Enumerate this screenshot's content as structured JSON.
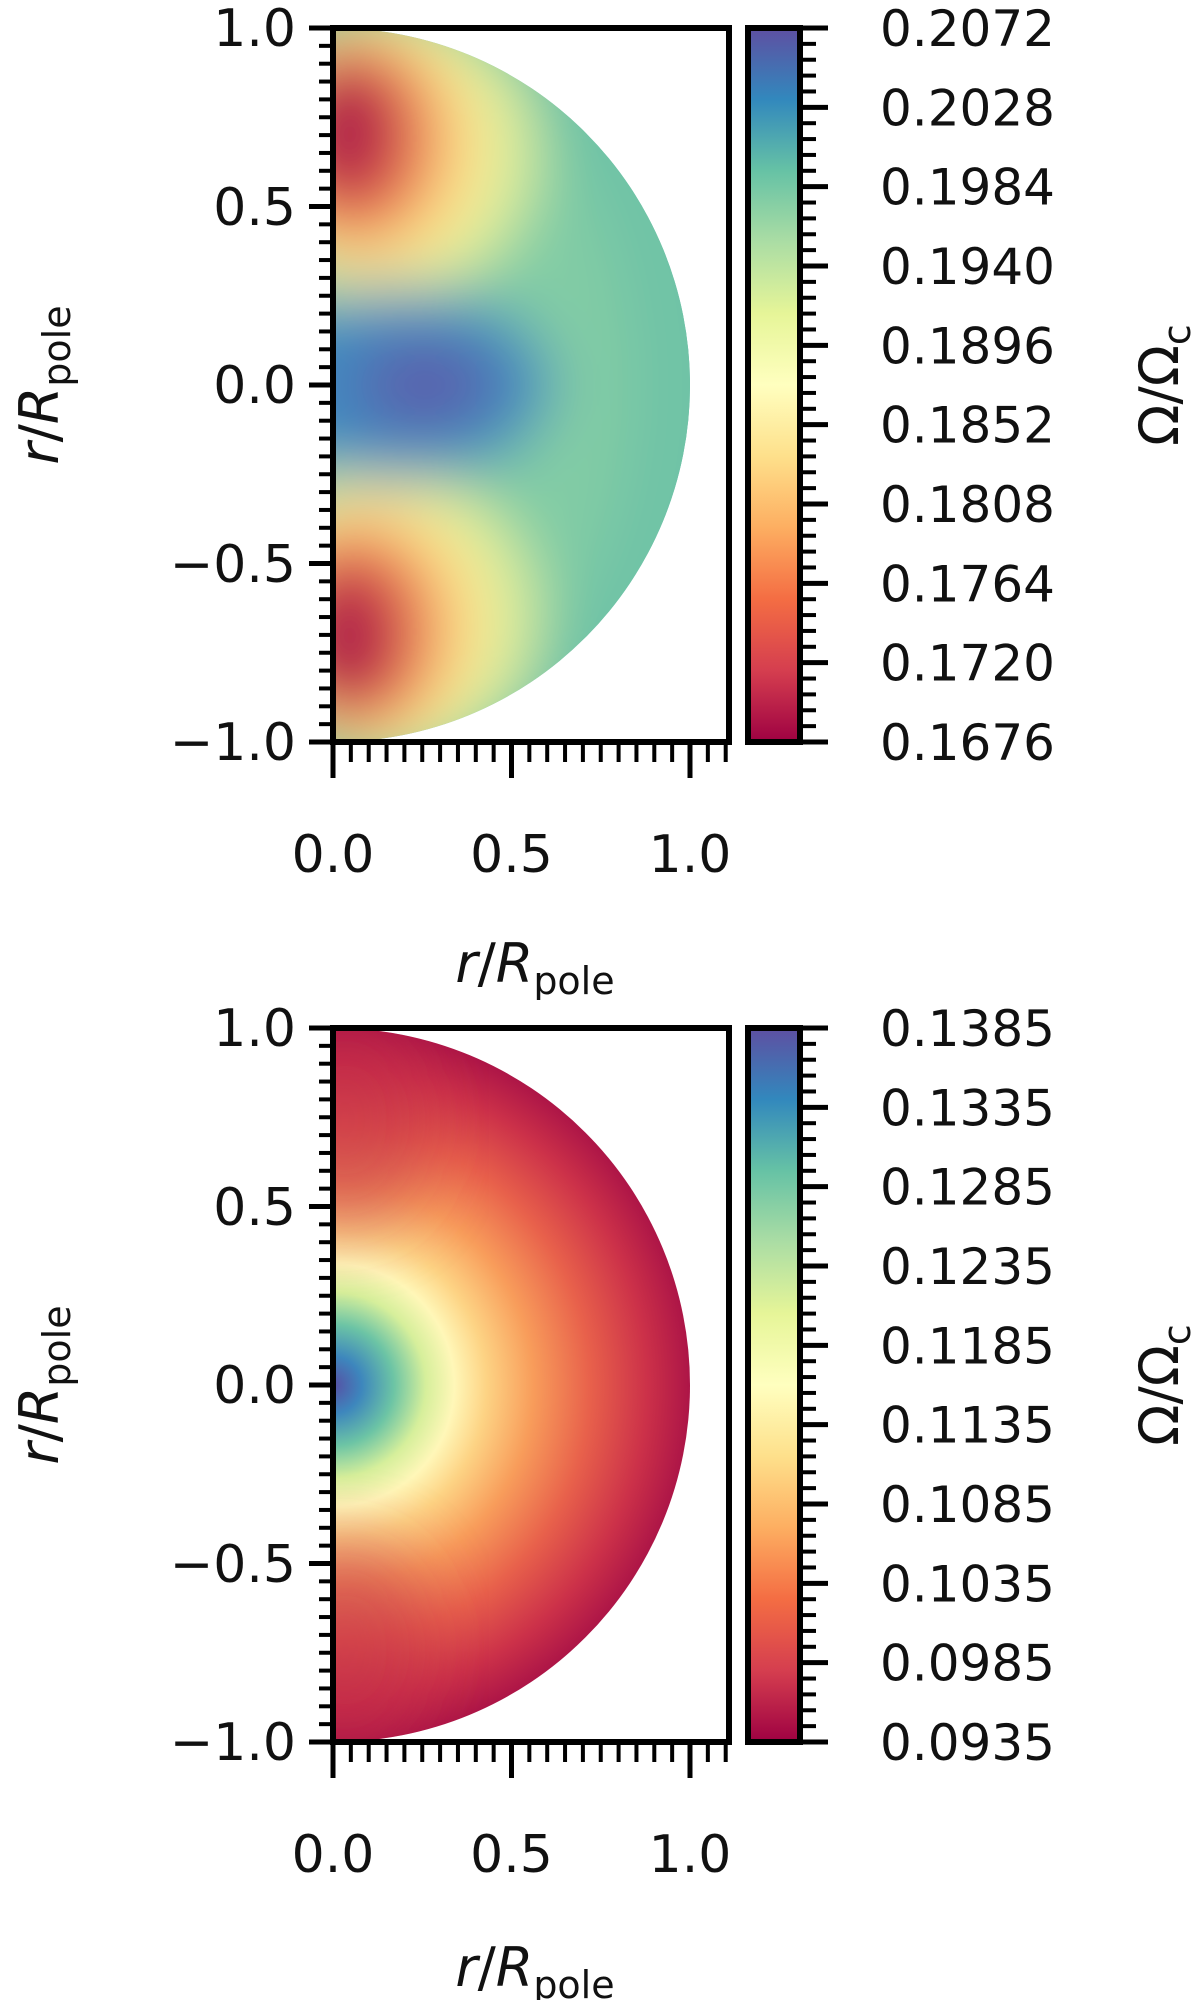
{
  "chart_data": [
    {
      "type": "heatmap",
      "title": "",
      "xlabel": {
        "var": "r",
        "sym": "R",
        "sub": "pole"
      },
      "ylabel": {
        "var": "r",
        "sym": "R",
        "sub": "pole"
      },
      "xlim": [
        0.0,
        1.1
      ],
      "ylim": [
        -1.0,
        1.0
      ],
      "x_ticks": [
        "0.0",
        "0.5",
        "1.0"
      ],
      "y_ticks": [
        "−1.0",
        "−0.5",
        "0.0",
        "0.5",
        "1.0"
      ],
      "colorbar_label": {
        "sym": "Ω/Ω",
        "sub": "c"
      },
      "colorbar_ticks": [
        "0.1676",
        "0.1720",
        "0.1764",
        "0.1808",
        "0.1852",
        "0.1896",
        "0.1940",
        "0.1984",
        "0.2028",
        "0.2072"
      ],
      "colorbar_range": [
        0.1676,
        0.2072
      ],
      "colormap": "Spectral",
      "field": "Ω/Ωc on a half-disk of radius 1; low (≈0.168) at polar region r≈0.2–0.8 near the axis, high (≈0.207) at the equator near r≈0.3, ≈0.199 in the outer envelope"
    },
    {
      "type": "heatmap",
      "title": "",
      "xlabel": {
        "var": "r",
        "sym": "R",
        "sub": "pole"
      },
      "ylabel": {
        "var": "r",
        "sym": "R",
        "sub": "pole"
      },
      "xlim": [
        0.0,
        1.1
      ],
      "ylim": [
        -1.0,
        1.0
      ],
      "x_ticks": [
        "0.0",
        "0.5",
        "1.0"
      ],
      "y_ticks": [
        "−1.0",
        "−0.5",
        "0.0",
        "0.5",
        "1.0"
      ],
      "colorbar_label": {
        "sym": "Ω/Ω",
        "sub": "c"
      },
      "colorbar_ticks": [
        "0.1385",
        "0.1335",
        "0.1285",
        "0.1235",
        "0.1185",
        "0.1135",
        "0.1085",
        "0.1035",
        "0.0985",
        "0.0935"
      ],
      "colorbar_range": [
        0.0935,
        0.1385
      ],
      "colormap": "Spectral",
      "field": "Ω/Ωc on a half-disk of radius 1; maximum (≈0.1385) at the center, decreasing radially to ≈0.0935 at the surface"
    }
  ]
}
